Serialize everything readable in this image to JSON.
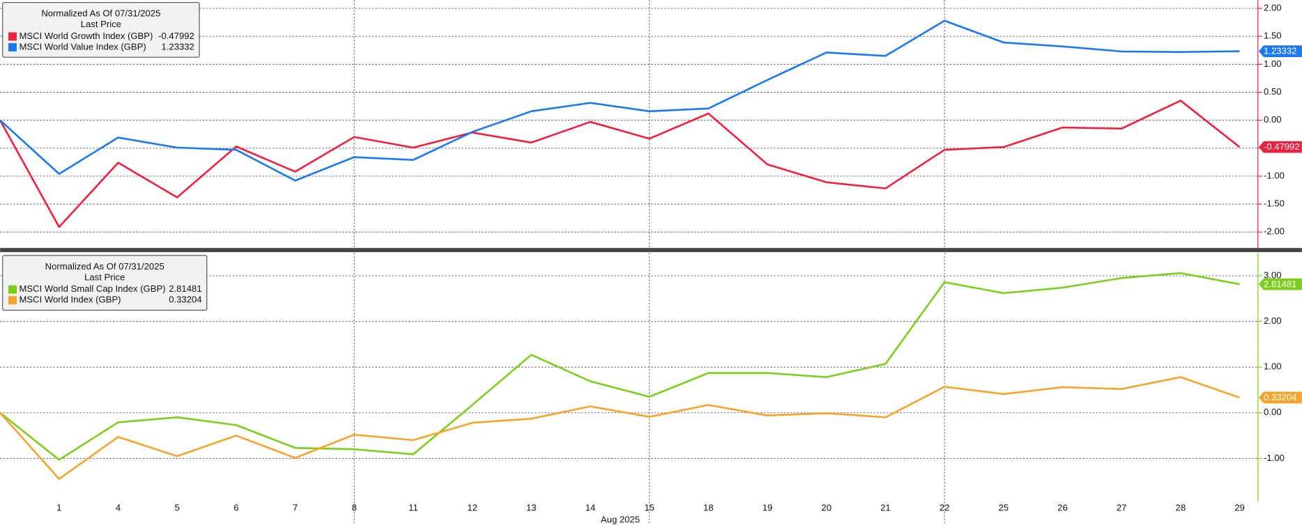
{
  "chart_data": [
    {
      "type": "line",
      "legend_title": "Normalized As Of 07/31/2025",
      "legend_subtitle": "Last Price",
      "axis_color": "#e8213f",
      "categories": [
        null,
        "1",
        "4",
        "5",
        "6",
        "7",
        "8",
        "11",
        "12",
        "13",
        "14",
        "15",
        "18",
        "19",
        "20",
        "21",
        "22",
        "25",
        "26",
        "27",
        "28",
        "29"
      ],
      "ylim": [
        -2.3,
        2.15
      ],
      "yticks": [
        {
          "value": -2,
          "label": "-2.00"
        },
        {
          "value": -1.5,
          "label": "-1.50"
        },
        {
          "value": -1,
          "label": "-1.00"
        },
        {
          "value": -0.5,
          "label": "-0.50"
        },
        {
          "value": 0,
          "label": "0.00"
        },
        {
          "value": 0.5,
          "label": "0.50"
        },
        {
          "value": 1,
          "label": "1.00"
        },
        {
          "value": 1.5,
          "label": "1.50"
        },
        {
          "value": 2,
          "label": "2.00"
        }
      ],
      "grid": true,
      "series": [
        {
          "name": "MSCI World Growth Index (GBP)",
          "color": "#f0203f",
          "values": [
            0,
            -1.91,
            -0.76,
            -1.38,
            -0.47,
            -0.92,
            -0.3,
            -0.49,
            -0.22,
            -0.4,
            -0.03,
            -0.33,
            0.12,
            -0.79,
            -1.11,
            -1.22,
            -0.53,
            -0.48,
            -0.13,
            -0.15,
            0.35,
            -0.47992
          ]
        },
        {
          "name": "MSCI World Value Index (GBP)",
          "color": "#1a78f0",
          "values": [
            0,
            -0.96,
            -0.31,
            -0.49,
            -0.53,
            -1.08,
            -0.66,
            -0.71,
            -0.21,
            0.16,
            0.31,
            0.16,
            0.21,
            0.72,
            1.21,
            1.15,
            1.78,
            1.39,
            1.32,
            1.23,
            1.22,
            1.23332
          ]
        }
      ]
    },
    {
      "type": "line",
      "legend_title": "Normalized As Of 07/31/2025",
      "legend_subtitle": "Last Price",
      "axis_color": "#7ccd1c",
      "xlabel": "Aug 2025",
      "categories": [
        null,
        "1",
        "4",
        "5",
        "6",
        "7",
        "8",
        "11",
        "12",
        "13",
        "14",
        "15",
        "18",
        "19",
        "20",
        "21",
        "22",
        "25",
        "26",
        "27",
        "28",
        "29"
      ],
      "ylim": [
        -1.95,
        3.5
      ],
      "yticks": [
        {
          "value": -1,
          "label": "-1.00"
        },
        {
          "value": 0,
          "label": "0.00"
        },
        {
          "value": 1,
          "label": "1.00"
        },
        {
          "value": 2,
          "label": "2.00"
        },
        {
          "value": 3,
          "label": "3.00"
        }
      ],
      "grid": true,
      "series": [
        {
          "name": "MSCI World Small Cap Index (GBP)",
          "color": "#7ccd1c",
          "values": [
            0,
            -1.03,
            -0.21,
            -0.1,
            -0.27,
            -0.77,
            -0.8,
            -0.91,
            0.17,
            1.27,
            0.69,
            0.35,
            0.87,
            0.87,
            0.78,
            1.07,
            2.86,
            2.62,
            2.74,
            2.95,
            3.06,
            2.81481
          ]
        },
        {
          "name": "MSCI World Index (GBP)",
          "color": "#f7a42c",
          "values": [
            0,
            -1.45,
            -0.53,
            -0.95,
            -0.5,
            -0.99,
            -0.48,
            -0.6,
            -0.22,
            -0.13,
            0.14,
            -0.09,
            0.17,
            -0.06,
            -0.01,
            -0.1,
            0.57,
            0.41,
            0.56,
            0.52,
            0.78,
            0.33204
          ]
        }
      ]
    }
  ]
}
